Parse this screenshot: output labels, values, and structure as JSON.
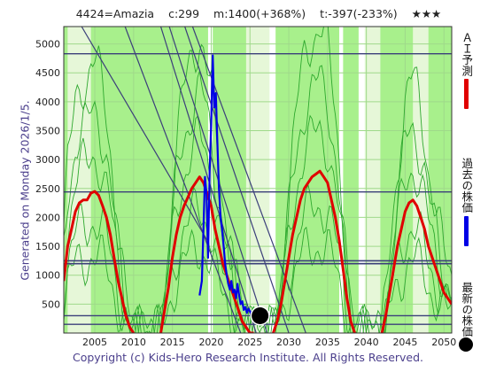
{
  "header": {
    "code_name": "4424=Amazia",
    "current": "c:299",
    "max_target": "m:1400(+368%)",
    "min_target": "t:-397(-233%)",
    "rating": "★★★"
  },
  "side_label": "Generated on Monday 2026/1/5.",
  "footer": "Copyright (c) Kids-Hero Research Institute. All Rights Reserved.",
  "legend": {
    "prediction": "ＡＩ予測",
    "past": "過去の株価",
    "latest": "最新の株価"
  },
  "colors": {
    "background_band": "#a8f08c",
    "light_band": "#e6f7d8",
    "white_band": "#ffffff",
    "thin_green": "#2ea82e",
    "navy_line": "#3b3f7a",
    "prediction": "#e00000",
    "past_price": "#0000e6",
    "latest_dot": "#000000"
  },
  "chart_data": {
    "type": "line",
    "xlim": [
      2001,
      2051
    ],
    "ylim": [
      0,
      5300
    ],
    "x_ticks": [
      2005,
      2010,
      2015,
      2020,
      2025,
      2030,
      2035,
      2040,
      2045,
      2050
    ],
    "y_ticks": [
      500,
      1000,
      1500,
      2000,
      2500,
      3000,
      3500,
      4000,
      4500,
      5000
    ],
    "horizontal_lines": [
      4830,
      2440,
      1250,
      1200,
      300,
      150
    ],
    "prediction_series": {
      "x": [
        2001.0,
        2001.5,
        2002.0,
        2002.5,
        2003.0,
        2003.5,
        2004.0,
        2004.5,
        2005.0,
        2005.5,
        2006.0,
        2006.5,
        2007.0,
        2007.5,
        2008.0,
        2008.5,
        2009.0,
        2009.5,
        2010.0,
        2013.5,
        2014.0,
        2014.5,
        2015.0,
        2015.5,
        2016.0,
        2016.5,
        2017.0,
        2017.5,
        2018.0,
        2018.5,
        2019.0,
        2019.5,
        2020.0,
        2020.5,
        2021.0,
        2021.5,
        2022.0,
        2022.5,
        2023.0,
        2023.5,
        2024.0,
        2024.5,
        2025.0,
        2025.5,
        2028.0,
        2028.5,
        2029.0,
        2029.5,
        2030.0,
        2030.5,
        2031.0,
        2031.5,
        2032.0,
        2032.5,
        2033.0,
        2033.5,
        2034.0,
        2034.5,
        2035.0,
        2035.5,
        2036.0,
        2036.5,
        2037.0,
        2037.5,
        2038.0,
        2038.5,
        2042.0,
        2042.5,
        2043.0,
        2043.5,
        2044.0,
        2044.5,
        2045.0,
        2045.5,
        2046.0,
        2046.5,
        2047.0,
        2047.5,
        2048.0,
        2048.5,
        2049.0,
        2049.5,
        2050.0,
        2050.5,
        2051.0
      ],
      "y": [
        900,
        1500,
        1800,
        2100,
        2250,
        2300,
        2300,
        2420,
        2450,
        2380,
        2200,
        2000,
        1700,
        1300,
        900,
        600,
        300,
        100,
        0,
        0,
        400,
        800,
        1300,
        1700,
        2000,
        2200,
        2350,
        2500,
        2600,
        2700,
        2600,
        2400,
        2200,
        1800,
        1500,
        1200,
        1000,
        800,
        600,
        400,
        200,
        100,
        0,
        0,
        0,
        200,
        500,
        900,
        1300,
        1700,
        2000,
        2300,
        2500,
        2600,
        2700,
        2750,
        2800,
        2700,
        2600,
        2300,
        2000,
        1600,
        1100,
        600,
        200,
        0,
        0,
        300,
        700,
        1100,
        1500,
        1800,
        2100,
        2250,
        2300,
        2200,
        2000,
        1800,
        1500,
        1300,
        1100,
        900,
        700,
        600,
        500
      ]
    },
    "past_series": {
      "x": [
        2018.5,
        2018.8,
        2019.0,
        2019.2,
        2019.4,
        2019.6,
        2019.8,
        2020.0,
        2020.2,
        2020.4,
        2020.6,
        2020.8,
        2021.0,
        2021.2,
        2021.4,
        2021.6,
        2021.8,
        2022.0,
        2022.2,
        2022.4,
        2022.6,
        2022.8,
        2023.0,
        2023.2,
        2023.4,
        2023.6,
        2023.8,
        2024.0,
        2024.2,
        2024.4,
        2024.6,
        2024.8,
        2025.0,
        2025.2,
        2025.4,
        2025.6,
        2025.8,
        2026.0
      ],
      "y": [
        650,
        900,
        1800,
        2700,
        2400,
        1300,
        2800,
        3600,
        4800,
        3900,
        4150,
        3300,
        2500,
        2000,
        1800,
        1500,
        1200,
        1000,
        850,
        750,
        900,
        700,
        750,
        600,
        850,
        650,
        500,
        550,
        400,
        450,
        350,
        420,
        380,
        330,
        300,
        320,
        300,
        299
      ]
    },
    "latest_point": {
      "x": 2026.3,
      "y": 299
    }
  }
}
